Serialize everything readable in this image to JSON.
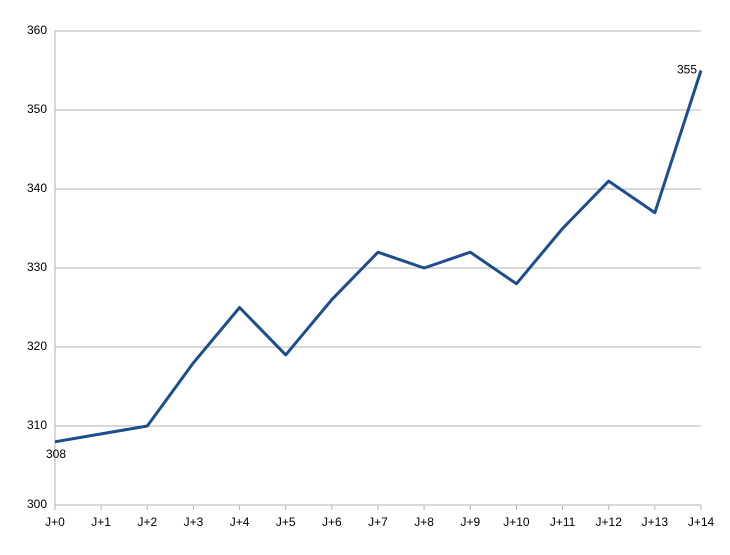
{
  "chart_data": {
    "type": "line",
    "categories": [
      "J+0",
      "J+1",
      "J+2",
      "J+3",
      "J+4",
      "J+5",
      "J+6",
      "J+7",
      "J+8",
      "J+9",
      "J+10",
      "J+11",
      "J+12",
      "J+13",
      "J+14"
    ],
    "series": [
      {
        "color": "#1c4e8d",
        "values": [
          308,
          309,
          310,
          318,
          325,
          319,
          326,
          332,
          330,
          332,
          328,
          335,
          341,
          337,
          355
        ]
      }
    ],
    "ylim": [
      300,
      360
    ],
    "yticks": [
      300,
      310,
      320,
      330,
      340,
      350,
      360
    ],
    "grid": true,
    "data_labels": "ends"
  }
}
